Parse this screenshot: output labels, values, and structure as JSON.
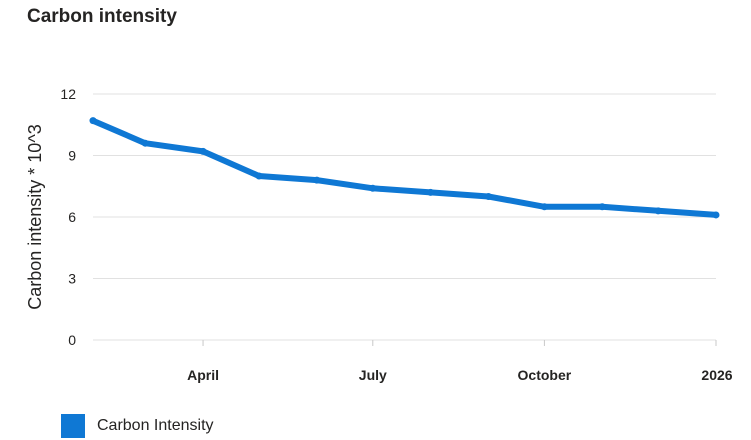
{
  "title": "Carbon intensity",
  "colors": {
    "series": "#0f78d4"
  },
  "chart_data": {
    "type": "line",
    "title": "Carbon intensity",
    "xlabel": "",
    "ylabel": "Carbon intensity * 10^3",
    "ylim": [
      0,
      12
    ],
    "yticks": [
      0,
      3,
      6,
      9,
      12
    ],
    "grid": true,
    "legend_position": "bottom-left",
    "x_tick_labels": [
      {
        "label": "April",
        "date": "2025-04-01"
      },
      {
        "label": "July",
        "date": "2025-07-01"
      },
      {
        "label": "October",
        "date": "2025-10-01"
      },
      {
        "label": "2026",
        "date": "2026-01-01"
      }
    ],
    "x_range": [
      "2025-02-01",
      "2026-01-01"
    ],
    "series": [
      {
        "name": "Carbon Intensity",
        "x": [
          "2025-02-01",
          "2025-03-01",
          "2025-04-01",
          "2025-05-01",
          "2025-06-01",
          "2025-07-01",
          "2025-08-01",
          "2025-09-01",
          "2025-10-01",
          "2025-11-01",
          "2025-12-01",
          "2026-01-01"
        ],
        "values": [
          10.7,
          9.6,
          9.2,
          8.0,
          7.8,
          7.4,
          7.2,
          7.0,
          6.5,
          6.5,
          6.3,
          6.1
        ]
      }
    ]
  }
}
